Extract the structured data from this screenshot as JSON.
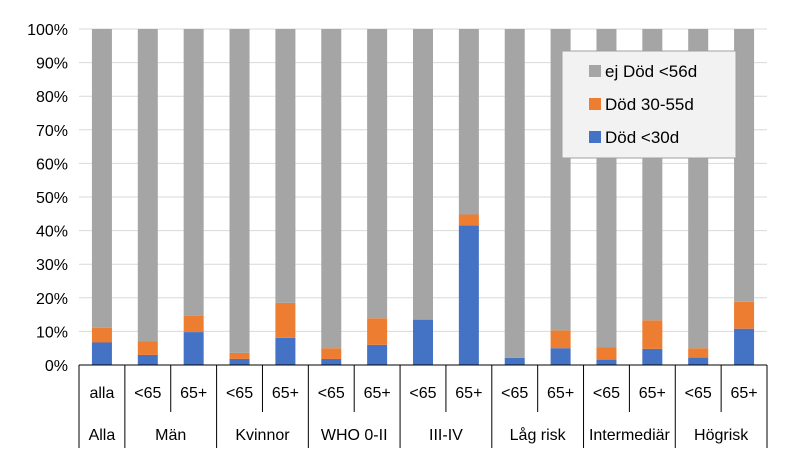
{
  "chart_data": {
    "type": "bar",
    "stacked": "percent",
    "categories": [
      "alla",
      "<65",
      "65+",
      "<65",
      "65+",
      "<65",
      "65+",
      "<65",
      "65+",
      "<65",
      "65+",
      "<65",
      "65+",
      "<65",
      "65+"
    ],
    "groups": [
      {
        "label": "Alla",
        "size": 1
      },
      {
        "label": "Män",
        "size": 2
      },
      {
        "label": "Kvinnor",
        "size": 2
      },
      {
        "label": "WHO 0-II",
        "size": 2
      },
      {
        "label": "III-IV",
        "size": 2
      },
      {
        "label": "Låg risk",
        "size": 2
      },
      {
        "label": "Intermediär",
        "size": 2
      },
      {
        "label": "Högrisk",
        "size": 2
      }
    ],
    "series": [
      {
        "name": "Död <30d",
        "color": "#4472C4",
        "values": [
          6.7,
          3.0,
          9.8,
          1.8,
          8.1,
          1.8,
          6.0,
          13.5,
          41.5,
          2.1,
          5.0,
          1.6,
          4.8,
          2.2,
          10.8
        ]
      },
      {
        "name": "Död 30-55d",
        "color": "#ED7D31",
        "values": [
          4.4,
          4.0,
          4.9,
          1.8,
          10.4,
          3.2,
          7.9,
          0.0,
          3.3,
          0.0,
          5.3,
          3.6,
          8.5,
          2.8,
          8.0
        ]
      },
      {
        "name": "ej Död <56d",
        "color": "#A5A5A5",
        "values": [
          88.9,
          93.0,
          85.3,
          96.4,
          81.5,
          95.0,
          86.1,
          86.5,
          55.2,
          97.9,
          89.7,
          94.8,
          86.7,
          95.0,
          81.2
        ]
      }
    ],
    "y_ticks": [
      "0%",
      "10%",
      "20%",
      "30%",
      "40%",
      "50%",
      "60%",
      "70%",
      "80%",
      "90%",
      "100%"
    ],
    "ylim": [
      0,
      100
    ],
    "legend": {
      "placement": "top-right",
      "entries": [
        "ej Död <56d",
        "Död 30-55d",
        "Död <30d"
      ]
    },
    "colors": {
      "gridline": "#D9D9D9",
      "axis": "#000000",
      "legend_border": "#A0A0A0"
    }
  }
}
